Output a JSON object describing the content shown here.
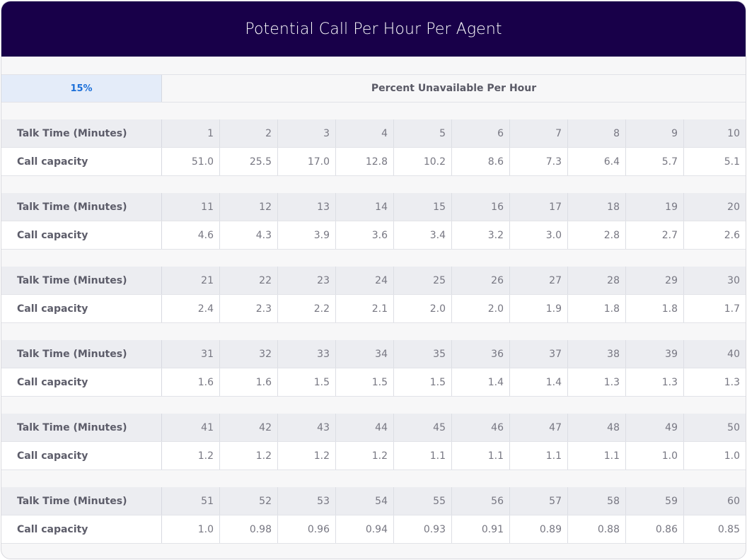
{
  "title": "Potential Call Per Hour Per Agent",
  "selector": {
    "percent": "15%",
    "label": "Percent Unavailable Per Hour"
  },
  "row_labels": {
    "talk": "Talk Time (Minutes)",
    "capacity": "Call capacity"
  },
  "blocks": [
    {
      "talk": [
        "1",
        "2",
        "3",
        "4",
        "5",
        "6",
        "7",
        "8",
        "9",
        "10"
      ],
      "capacity": [
        "51.0",
        "25.5",
        "17.0",
        "12.8",
        "10.2",
        "8.6",
        "7.3",
        "6.4",
        "5.7",
        "5.1"
      ]
    },
    {
      "talk": [
        "11",
        "12",
        "13",
        "14",
        "15",
        "16",
        "17",
        "18",
        "19",
        "20"
      ],
      "capacity": [
        "4.6",
        "4.3",
        "3.9",
        "3.6",
        "3.4",
        "3.2",
        "3.0",
        "2.8",
        "2.7",
        "2.6"
      ]
    },
    {
      "talk": [
        "21",
        "22",
        "23",
        "24",
        "25",
        "26",
        "27",
        "28",
        "29",
        "30"
      ],
      "capacity": [
        "2.4",
        "2.3",
        "2.2",
        "2.1",
        "2.0",
        "2.0",
        "1.9",
        "1.8",
        "1.8",
        "1.7"
      ]
    },
    {
      "talk": [
        "31",
        "32",
        "33",
        "34",
        "35",
        "36",
        "37",
        "38",
        "39",
        "40"
      ],
      "capacity": [
        "1.6",
        "1.6",
        "1.5",
        "1.5",
        "1.5",
        "1.4",
        "1.4",
        "1.3",
        "1.3",
        "1.3"
      ]
    },
    {
      "talk": [
        "41",
        "42",
        "43",
        "44",
        "45",
        "46",
        "47",
        "48",
        "49",
        "50"
      ],
      "capacity": [
        "1.2",
        "1.2",
        "1.2",
        "1.2",
        "1.1",
        "1.1",
        "1.1",
        "1.1",
        "1.0",
        "1.0"
      ]
    },
    {
      "talk": [
        "51",
        "52",
        "53",
        "54",
        "55",
        "56",
        "57",
        "58",
        "59",
        "60"
      ],
      "capacity": [
        "1.0",
        "0.98",
        "0.96",
        "0.94",
        "0.93",
        "0.91",
        "0.89",
        "0.88",
        "0.86",
        "0.85"
      ]
    }
  ],
  "colors": {
    "header_bg": "#180049",
    "accent": "#1b6fd9",
    "selected_bg": "#e4ecf9"
  }
}
